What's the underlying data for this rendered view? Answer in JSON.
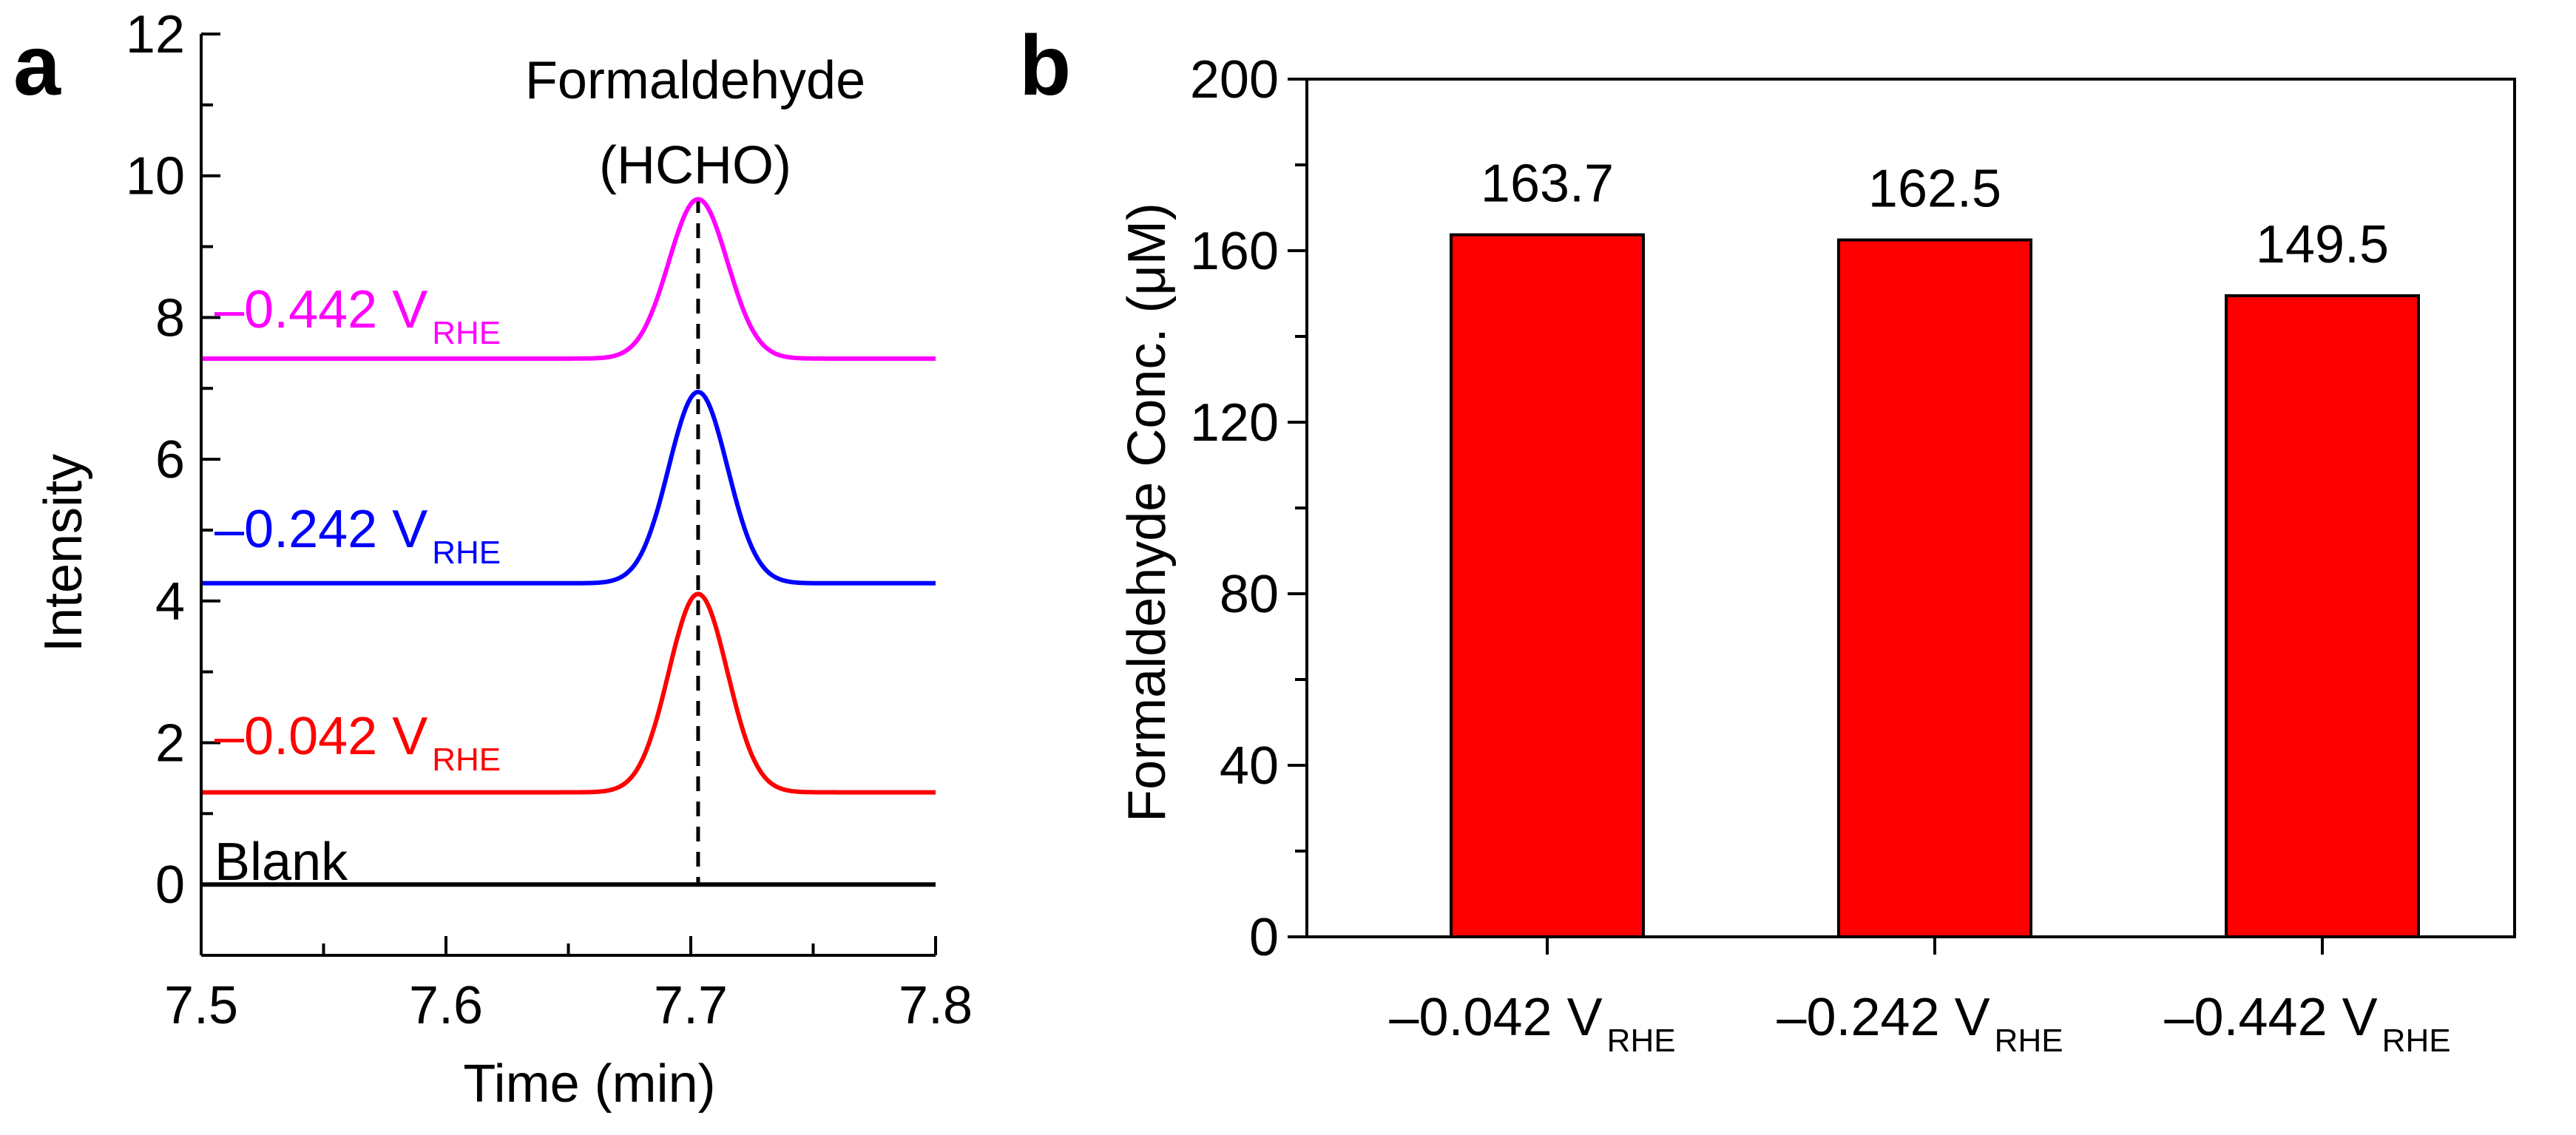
{
  "chart_data": [
    {
      "panel_label": "a",
      "type": "line",
      "xlabel": "Time (min)",
      "ylabel": "Intensity",
      "xlim": [
        7.5,
        7.8
      ],
      "ylim": [
        -1,
        12
      ],
      "xticks": [
        "7.5",
        "7.6",
        "7.7",
        "7.8"
      ],
      "yticks": [
        "0",
        "2",
        "4",
        "6",
        "8",
        "10",
        "12"
      ],
      "xtick_values": [
        7.5,
        7.6,
        7.7,
        7.8
      ],
      "ytick_values": [
        0,
        2,
        4,
        6,
        8,
        10,
        12
      ],
      "annotation": {
        "line1": "Formaldehyde",
        "line2": "(HCHO)",
        "x": 7.703
      },
      "peak_center": 7.703,
      "peak_sigma": 0.012,
      "series": [
        {
          "name": "Blank",
          "label_main": "Blank",
          "label_sub": "",
          "color": "#000000",
          "baseline": 0.0,
          "peak_height": 0.0,
          "baseline_slope": 0.0
        },
        {
          "name": "–0.042 V_RHE",
          "label_main": "–0.042 V",
          "label_sub": "RHE",
          "color": "#ff0000",
          "baseline": 1.3,
          "peak_height": 2.8,
          "baseline_slope": 0.0
        },
        {
          "name": "–0.242 V_RHE",
          "label_main": "–0.242 V",
          "label_sub": "RHE",
          "color": "#0000ff",
          "baseline": 4.25,
          "peak_height": 2.7,
          "baseline_slope": 0.0
        },
        {
          "name": "–0.442 V_RHE",
          "label_main": "–0.442 V",
          "label_sub": "RHE",
          "color": "#ff00ff",
          "baseline": 7.42,
          "peak_height": 2.25,
          "baseline_slope": 0.0
        }
      ]
    },
    {
      "panel_label": "b",
      "type": "bar",
      "xlabel": "",
      "ylabel": "Formaldehyde Conc. (μM)",
      "ylim": [
        0,
        200
      ],
      "yticks": [
        "0",
        "40",
        "80",
        "120",
        "160",
        "200"
      ],
      "ytick_values": [
        0,
        40,
        80,
        120,
        160,
        200
      ],
      "categories": [
        {
          "main": "–0.042 V",
          "sub": "RHE"
        },
        {
          "main": "–0.242 V",
          "sub": "RHE"
        },
        {
          "main": "–0.442 V",
          "sub": "RHE"
        }
      ],
      "values": [
        163.7,
        162.5,
        149.5
      ],
      "value_labels": [
        "163.7",
        "162.5",
        "149.5"
      ],
      "bar_color": "#ff0000"
    }
  ]
}
